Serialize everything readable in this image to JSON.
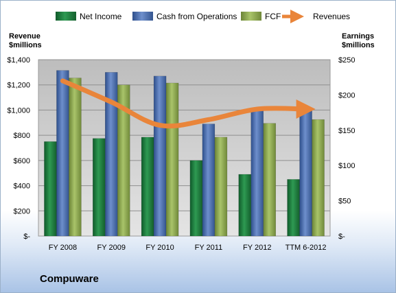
{
  "company": "Compuware",
  "legend": {
    "net_income": "Net Income",
    "cash_ops": "Cash from Operations",
    "fcf": "FCF",
    "revenues": "Revenues"
  },
  "left_axis_title": [
    "Revenue",
    "$millions"
  ],
  "right_axis_title": [
    "Earnings",
    "$millions"
  ],
  "colors": {
    "net_income": "#1f7a3e",
    "cash_ops": "#4a6fb0",
    "fcf": "#8faa52",
    "revenues": "#e9853a",
    "plot_bg": "#c9c9c9"
  },
  "chart_data": {
    "type": "bar",
    "categories": [
      "FY 2008",
      "FY 2009",
      "FY 2010",
      "FY 2011",
      "FY 2012",
      "TTM 6-2012"
    ],
    "series": [
      {
        "name": "Net Income",
        "axis": "left",
        "values": [
          750,
          775,
          785,
          600,
          490,
          450
        ]
      },
      {
        "name": "Cash from Operations",
        "axis": "left",
        "values": [
          1315,
          1300,
          1270,
          890,
          1000,
          1020
        ]
      },
      {
        "name": "FCF",
        "axis": "left",
        "values": [
          1255,
          1200,
          1215,
          785,
          895,
          925
        ]
      },
      {
        "name": "Revenues",
        "type": "line",
        "axis": "right",
        "values": [
          220,
          190,
          157,
          165,
          180,
          180
        ]
      }
    ],
    "left_axis": {
      "min": 0,
      "max": 1400,
      "step": 200,
      "tick_labels": [
        "$-",
        "$200",
        "$400",
        "$600",
        "$800",
        "$1,000",
        "$1,200",
        "$1,400"
      ]
    },
    "right_axis": {
      "min": 0,
      "max": 250,
      "step": 50,
      "tick_labels": [
        "$-",
        "$50",
        "$100",
        "$150",
        "$200",
        "$250"
      ]
    },
    "legend_position": "top",
    "grid": true
  }
}
